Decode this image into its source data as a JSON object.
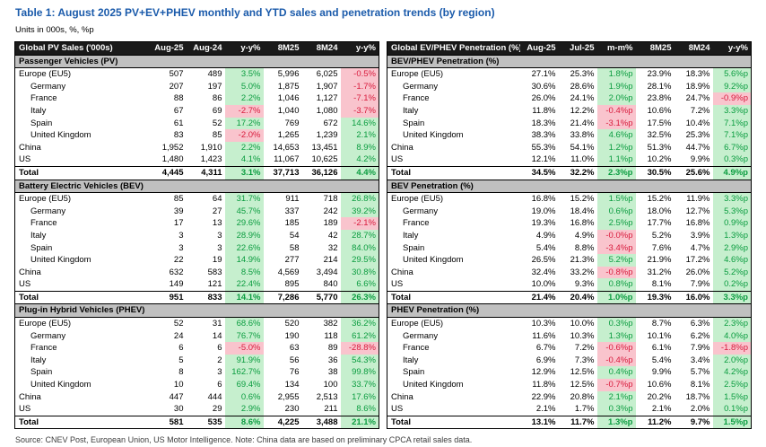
{
  "page": {
    "title": "Table 1: August 2025 PV+EV+PHEV monthly and YTD sales and penetration trends (by region)",
    "subtitle": "Units in 000s, %, %p",
    "source_note": "Source: CNEV Post, European Union, US Motor Intelligence. Note: China data are based on preliminary CPCA retail sales data."
  },
  "colors": {
    "title-blue": "#1b5bab",
    "header-bg": "#1a1a1a",
    "header-text": "#ffffff",
    "section-bg": "#c0c0c0",
    "pos-bg": "#c6efce",
    "pos-text": "#0a9c3f",
    "neg-bg": "#f9c4cd",
    "neg-text": "#d81a3c"
  },
  "tables": [
    {
      "id": "global-pv-sales",
      "header": [
        "Global PV Sales ('000s)",
        "Aug-25",
        "Aug-24",
        "y-y%",
        "8M25",
        "8M24",
        "y-y%"
      ],
      "highlight_cols": [
        2,
        5
      ],
      "sections": [
        {
          "label": "Passenger Vehicles (PV)",
          "rows": [
            {
              "name": "Europe (EU5)",
              "indent": false,
              "cells": [
                "507",
                "489",
                "3.5%",
                "5,996",
                "6,025",
                "-0.5%"
              ]
            },
            {
              "name": "Germany",
              "indent": true,
              "cells": [
                "207",
                "197",
                "5.0%",
                "1,875",
                "1,907",
                "-1.7%"
              ]
            },
            {
              "name": "France",
              "indent": true,
              "cells": [
                "88",
                "86",
                "2.2%",
                "1,046",
                "1,127",
                "-7.1%"
              ]
            },
            {
              "name": "Italy",
              "indent": true,
              "cells": [
                "67",
                "69",
                "-2.7%",
                "1,040",
                "1,080",
                "-3.7%"
              ]
            },
            {
              "name": "Spain",
              "indent": true,
              "cells": [
                "61",
                "52",
                "17.2%",
                "769",
                "672",
                "14.6%"
              ]
            },
            {
              "name": "United Kingdom",
              "indent": true,
              "cells": [
                "83",
                "85",
                "-2.0%",
                "1,265",
                "1,239",
                "2.1%"
              ]
            },
            {
              "name": "China",
              "indent": false,
              "cells": [
                "1,952",
                "1,910",
                "2.2%",
                "14,653",
                "13,451",
                "8.9%"
              ]
            },
            {
              "name": "US",
              "indent": false,
              "cells": [
                "1,480",
                "1,423",
                "4.1%",
                "11,067",
                "10,625",
                "4.2%"
              ]
            }
          ],
          "total": {
            "name": "Total",
            "indent": false,
            "cells": [
              "4,445",
              "4,311",
              "3.1%",
              "37,713",
              "36,126",
              "4.4%"
            ]
          }
        },
        {
          "label": "Battery Electric Vehicles (BEV)",
          "rows": [
            {
              "name": "Europe (EU5)",
              "indent": false,
              "cells": [
                "85",
                "64",
                "31.7%",
                "911",
                "718",
                "26.8%"
              ]
            },
            {
              "name": "Germany",
              "indent": true,
              "cells": [
                "39",
                "27",
                "45.7%",
                "337",
                "242",
                "39.2%"
              ]
            },
            {
              "name": "France",
              "indent": true,
              "cells": [
                "17",
                "13",
                "29.6%",
                "185",
                "189",
                "-2.1%"
              ]
            },
            {
              "name": "Italy",
              "indent": true,
              "cells": [
                "3",
                "3",
                "28.9%",
                "54",
                "42",
                "28.7%"
              ]
            },
            {
              "name": "Spain",
              "indent": true,
              "cells": [
                "3",
                "3",
                "22.6%",
                "58",
                "32",
                "84.0%"
              ]
            },
            {
              "name": "United Kingdom",
              "indent": true,
              "cells": [
                "22",
                "19",
                "14.9%",
                "277",
                "214",
                "29.5%"
              ]
            },
            {
              "name": "China",
              "indent": false,
              "cells": [
                "632",
                "583",
                "8.5%",
                "4,569",
                "3,494",
                "30.8%"
              ]
            },
            {
              "name": "US",
              "indent": false,
              "cells": [
                "149",
                "121",
                "22.4%",
                "895",
                "840",
                "6.6%"
              ]
            }
          ],
          "total": {
            "name": "Total",
            "indent": false,
            "cells": [
              "951",
              "833",
              "14.1%",
              "7,286",
              "5,770",
              "26.3%"
            ]
          }
        },
        {
          "label": "Plug-in Hybrid Vehicles (PHEV)",
          "rows": [
            {
              "name": "Europe (EU5)",
              "indent": false,
              "cells": [
                "52",
                "31",
                "68.6%",
                "520",
                "382",
                "36.2%"
              ]
            },
            {
              "name": "Germany",
              "indent": true,
              "cells": [
                "24",
                "14",
                "76.7%",
                "190",
                "118",
                "61.2%"
              ]
            },
            {
              "name": "France",
              "indent": true,
              "cells": [
                "6",
                "6",
                "-5.0%",
                "63",
                "89",
                "-28.8%"
              ]
            },
            {
              "name": "Italy",
              "indent": true,
              "cells": [
                "5",
                "2",
                "91.9%",
                "56",
                "36",
                "54.3%"
              ]
            },
            {
              "name": "Spain",
              "indent": true,
              "cells": [
                "8",
                "3",
                "162.7%",
                "76",
                "38",
                "99.8%"
              ]
            },
            {
              "name": "United Kingdom",
              "indent": true,
              "cells": [
                "10",
                "6",
                "69.4%",
                "134",
                "100",
                "33.7%"
              ]
            },
            {
              "name": "China",
              "indent": false,
              "cells": [
                "447",
                "444",
                "0.6%",
                "2,955",
                "2,513",
                "17.6%"
              ]
            },
            {
              "name": "US",
              "indent": false,
              "cells": [
                "30",
                "29",
                "2.9%",
                "230",
                "211",
                "8.6%"
              ]
            }
          ],
          "total": {
            "name": "Total",
            "indent": false,
            "cells": [
              "581",
              "535",
              "8.6%",
              "4,225",
              "3,488",
              "21.1%"
            ]
          }
        }
      ]
    },
    {
      "id": "global-ev-phev-penetration",
      "header": [
        "Global EV/PHEV Penetration (%)",
        "Aug-25",
        "Jul-25",
        "m-m%",
        "8M25",
        "8M24",
        "y-y%"
      ],
      "highlight_cols": [
        2,
        5
      ],
      "sections": [
        {
          "label": "BEV/PHEV Penetration (%)",
          "rows": [
            {
              "name": "Europe (EU5)",
              "indent": false,
              "cells": [
                "27.1%",
                "25.3%",
                "1.8%p",
                "23.9%",
                "18.3%",
                "5.6%p"
              ]
            },
            {
              "name": "Germany",
              "indent": true,
              "cells": [
                "30.6%",
                "28.6%",
                "1.9%p",
                "28.1%",
                "18.9%",
                "9.2%p"
              ]
            },
            {
              "name": "France",
              "indent": true,
              "cells": [
                "26.0%",
                "24.1%",
                "2.0%p",
                "23.8%",
                "24.7%",
                "-0.9%p"
              ]
            },
            {
              "name": "Italy",
              "indent": true,
              "cells": [
                "11.8%",
                "12.2%",
                "-0.4%p",
                "10.6%",
                "7.2%",
                "3.3%p"
              ]
            },
            {
              "name": "Spain",
              "indent": true,
              "cells": [
                "18.3%",
                "21.4%",
                "-3.1%p",
                "17.5%",
                "10.4%",
                "7.1%p"
              ]
            },
            {
              "name": "United Kingdom",
              "indent": true,
              "cells": [
                "38.3%",
                "33.8%",
                "4.6%p",
                "32.5%",
                "25.3%",
                "7.1%p"
              ]
            },
            {
              "name": "China",
              "indent": false,
              "cells": [
                "55.3%",
                "54.1%",
                "1.2%p",
                "51.3%",
                "44.7%",
                "6.7%p"
              ]
            },
            {
              "name": "US",
              "indent": false,
              "cells": [
                "12.1%",
                "11.0%",
                "1.1%p",
                "10.2%",
                "9.9%",
                "0.3%p"
              ]
            }
          ],
          "total": {
            "name": "Total",
            "indent": false,
            "cells": [
              "34.5%",
              "32.2%",
              "2.3%p",
              "30.5%",
              "25.6%",
              "4.9%p"
            ]
          }
        },
        {
          "label": "BEV Penetration (%)",
          "rows": [
            {
              "name": "Europe (EU5)",
              "indent": false,
              "cells": [
                "16.8%",
                "15.2%",
                "1.5%p",
                "15.2%",
                "11.9%",
                "3.3%p"
              ]
            },
            {
              "name": "Germany",
              "indent": true,
              "cells": [
                "19.0%",
                "18.4%",
                "0.6%p",
                "18.0%",
                "12.7%",
                "5.3%p"
              ]
            },
            {
              "name": "France",
              "indent": true,
              "cells": [
                "19.3%",
                "16.8%",
                "2.5%p",
                "17.7%",
                "16.8%",
                "0.9%p"
              ]
            },
            {
              "name": "Italy",
              "indent": true,
              "cells": [
                "4.9%",
                "4.9%",
                "-0.0%p",
                "5.2%",
                "3.9%",
                "1.3%p"
              ]
            },
            {
              "name": "Spain",
              "indent": true,
              "cells": [
                "5.4%",
                "8.8%",
                "-3.4%p",
                "7.6%",
                "4.7%",
                "2.9%p"
              ]
            },
            {
              "name": "United Kingdom",
              "indent": true,
              "cells": [
                "26.5%",
                "21.3%",
                "5.2%p",
                "21.9%",
                "17.2%",
                "4.6%p"
              ]
            },
            {
              "name": "China",
              "indent": false,
              "cells": [
                "32.4%",
                "33.2%",
                "-0.8%p",
                "31.2%",
                "26.0%",
                "5.2%p"
              ]
            },
            {
              "name": "US",
              "indent": false,
              "cells": [
                "10.0%",
                "9.3%",
                "0.8%p",
                "8.1%",
                "7.9%",
                "0.2%p"
              ]
            }
          ],
          "total": {
            "name": "Total",
            "indent": false,
            "cells": [
              "21.4%",
              "20.4%",
              "1.0%p",
              "19.3%",
              "16.0%",
              "3.3%p"
            ]
          }
        },
        {
          "label": "PHEV Penetration (%)",
          "rows": [
            {
              "name": "Europe (EU5)",
              "indent": false,
              "cells": [
                "10.3%",
                "10.0%",
                "0.3%p",
                "8.7%",
                "6.3%",
                "2.3%p"
              ]
            },
            {
              "name": "Germany",
              "indent": true,
              "cells": [
                "11.6%",
                "10.3%",
                "1.3%p",
                "10.1%",
                "6.2%",
                "4.0%p"
              ]
            },
            {
              "name": "France",
              "indent": true,
              "cells": [
                "6.7%",
                "7.2%",
                "-0.6%p",
                "6.1%",
                "7.9%",
                "-1.8%p"
              ]
            },
            {
              "name": "Italy",
              "indent": true,
              "cells": [
                "6.9%",
                "7.3%",
                "-0.4%p",
                "5.4%",
                "3.4%",
                "2.0%p"
              ]
            },
            {
              "name": "Spain",
              "indent": true,
              "cells": [
                "12.9%",
                "12.5%",
                "0.4%p",
                "9.9%",
                "5.7%",
                "4.2%p"
              ]
            },
            {
              "name": "United Kingdom",
              "indent": true,
              "cells": [
                "11.8%",
                "12.5%",
                "-0.7%p",
                "10.6%",
                "8.1%",
                "2.5%p"
              ]
            },
            {
              "name": "China",
              "indent": false,
              "cells": [
                "22.9%",
                "20.8%",
                "2.1%p",
                "20.2%",
                "18.7%",
                "1.5%p"
              ]
            },
            {
              "name": "US",
              "indent": false,
              "cells": [
                "2.1%",
                "1.7%",
                "0.3%p",
                "2.1%",
                "2.0%",
                "0.1%p"
              ]
            }
          ],
          "total": {
            "name": "Total",
            "indent": false,
            "cells": [
              "13.1%",
              "11.7%",
              "1.3%p",
              "11.2%",
              "9.7%",
              "1.5%p"
            ]
          }
        }
      ]
    }
  ]
}
